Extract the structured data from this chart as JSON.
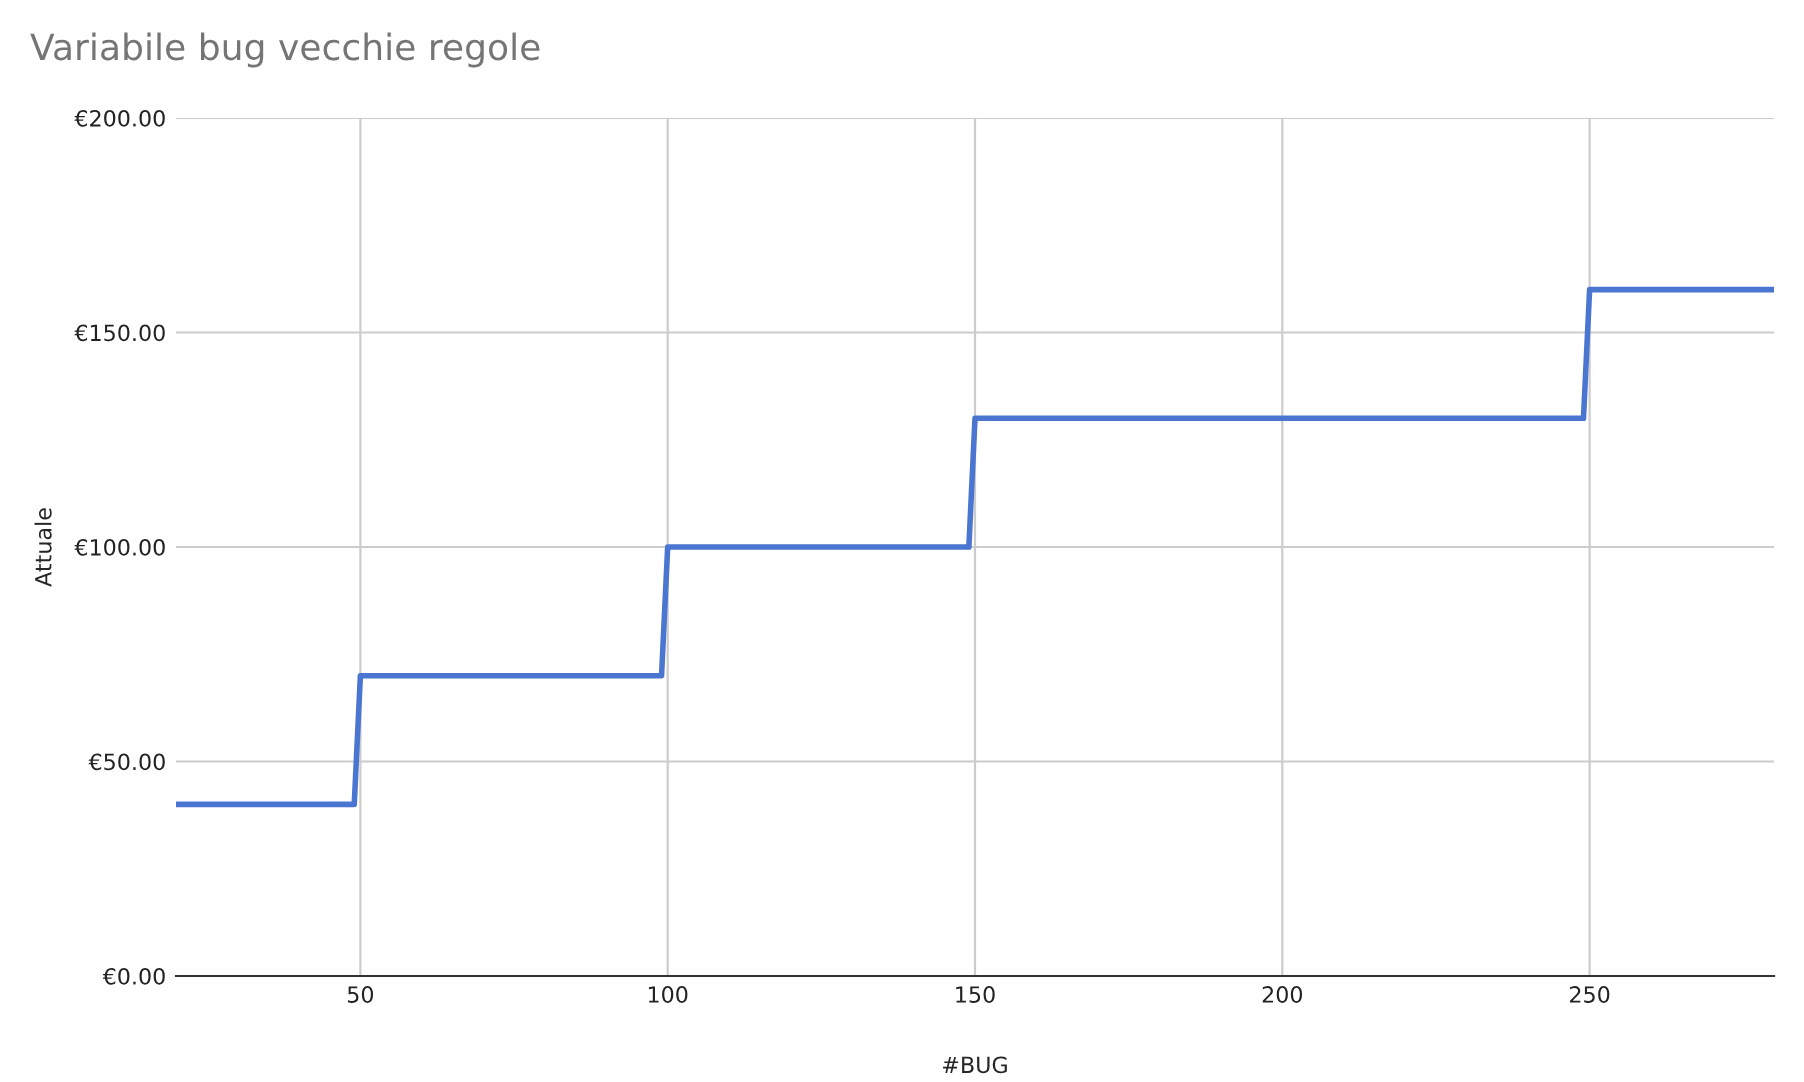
{
  "chart_data": {
    "type": "line",
    "title": "Variabile bug vecchie regole",
    "xlabel": "#BUG",
    "ylabel": "Attuale",
    "x": [
      20,
      49,
      50,
      99,
      100,
      149,
      150,
      249,
      250,
      280
    ],
    "series": [
      {
        "color": "#4a76d1",
        "values": [
          40,
          40,
          70,
          70,
          100,
          100,
          130,
          130,
          160,
          160
        ]
      }
    ],
    "xlim": [
      20,
      280
    ],
    "xticks": [
      50,
      100,
      150,
      200,
      250
    ],
    "ylim": [
      0,
      200
    ],
    "yticks": [
      {
        "value": 0,
        "label": "€0.00"
      },
      {
        "value": 50,
        "label": "€50.00"
      },
      {
        "value": 100,
        "label": "€100.00"
      },
      {
        "value": 150,
        "label": "€150.00"
      },
      {
        "value": 200,
        "label": "€200.00"
      }
    ],
    "grid": true,
    "legend": false,
    "marker": "none",
    "line_style": "solid"
  }
}
